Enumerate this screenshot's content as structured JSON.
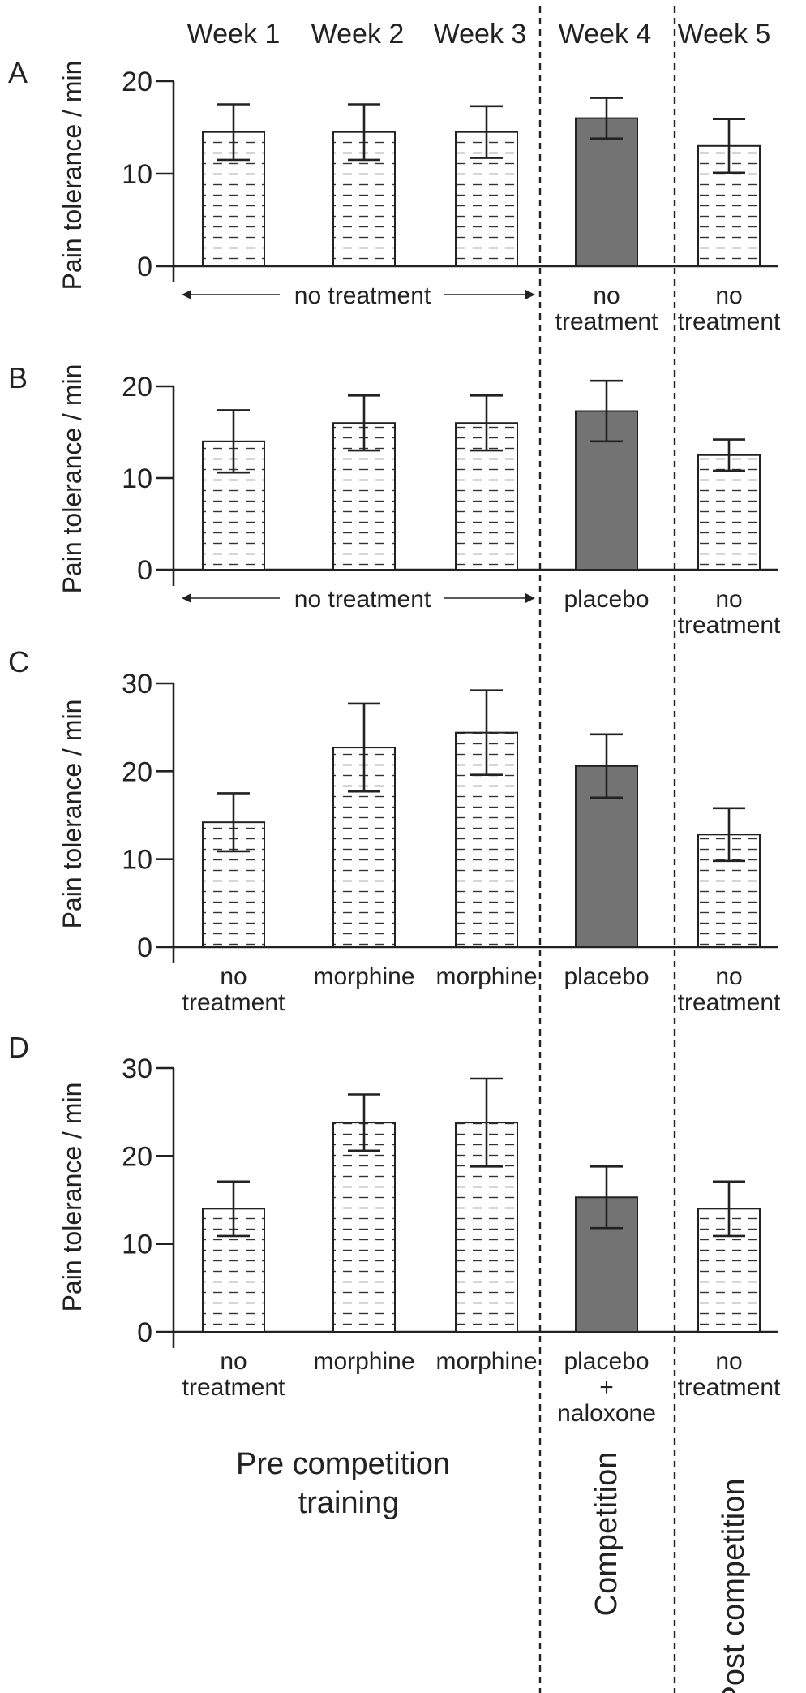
{
  "weeks": [
    "Week 1",
    "Week 2",
    "Week 3",
    "Week 4",
    "Week 5"
  ],
  "phases": {
    "pre": [
      "Pre competition",
      "training"
    ],
    "competition": "Competition",
    "post": "Post competition"
  },
  "colors": {
    "hatched_fill": "#ffffff",
    "hatch_line": "#333333",
    "competition_fill": "#737373",
    "axis": "#222222"
  },
  "chart_data": [
    {
      "type": "bar",
      "panel": "A",
      "ylabel": "Pain tolerance / min",
      "ylim": [
        0,
        20
      ],
      "yticks": [
        0,
        10,
        20
      ],
      "categories": [
        "Week 1",
        "Week 2",
        "Week 3",
        "Week 4",
        "Week 5"
      ],
      "values": [
        14.5,
        14.5,
        14.5,
        16.0,
        13.0
      ],
      "error": [
        3.0,
        3.0,
        2.8,
        2.2,
        2.9
      ],
      "treatment_labels": [
        {
          "lines": [
            "no treatment"
          ],
          "span": true
        },
        {
          "lines": [
            "no",
            "treatment"
          ]
        },
        {
          "lines": [
            "no",
            "treatment"
          ]
        }
      ]
    },
    {
      "type": "bar",
      "panel": "B",
      "ylabel": "Pain tolerance / min",
      "ylim": [
        0,
        20
      ],
      "yticks": [
        0,
        10,
        20
      ],
      "categories": [
        "Week 1",
        "Week 2",
        "Week 3",
        "Week 4",
        "Week 5"
      ],
      "values": [
        14.0,
        16.0,
        16.0,
        17.3,
        12.5
      ],
      "error": [
        3.4,
        3.0,
        3.0,
        3.3,
        1.7
      ],
      "treatment_labels": [
        {
          "lines": [
            "no treatment"
          ],
          "span": true
        },
        {
          "lines": [
            "placebo"
          ]
        },
        {
          "lines": [
            "no",
            "treatment"
          ]
        }
      ]
    },
    {
      "type": "bar",
      "panel": "C",
      "ylabel": "Pain tolerance / min",
      "ylim": [
        0,
        30
      ],
      "yticks": [
        0,
        10,
        20,
        30
      ],
      "categories": [
        "Week 1",
        "Week 2",
        "Week 3",
        "Week 4",
        "Week 5"
      ],
      "values": [
        14.2,
        22.7,
        24.4,
        20.6,
        12.8
      ],
      "error": [
        3.3,
        5.0,
        4.8,
        3.6,
        3.0
      ],
      "treatment_labels": [
        {
          "lines": [
            "no",
            "treatment"
          ]
        },
        {
          "lines": [
            "morphine"
          ]
        },
        {
          "lines": [
            "morphine"
          ]
        },
        {
          "lines": [
            "placebo"
          ]
        },
        {
          "lines": [
            "no",
            "treatment"
          ]
        }
      ]
    },
    {
      "type": "bar",
      "panel": "D",
      "ylabel": "Pain tolerance / min",
      "ylim": [
        0,
        30
      ],
      "yticks": [
        0,
        10,
        20,
        30
      ],
      "categories": [
        "Week 1",
        "Week 2",
        "Week 3",
        "Week 4",
        "Week 5"
      ],
      "values": [
        14.0,
        23.8,
        23.8,
        15.3,
        14.0
      ],
      "error": [
        3.1,
        3.2,
        5.0,
        3.5,
        3.1
      ],
      "treatment_labels": [
        {
          "lines": [
            "no",
            "treatment"
          ]
        },
        {
          "lines": [
            "morphine"
          ]
        },
        {
          "lines": [
            "morphine"
          ]
        },
        {
          "lines": [
            "placebo",
            "+",
            "naloxone"
          ]
        },
        {
          "lines": [
            "no",
            "treatment"
          ]
        }
      ]
    }
  ]
}
